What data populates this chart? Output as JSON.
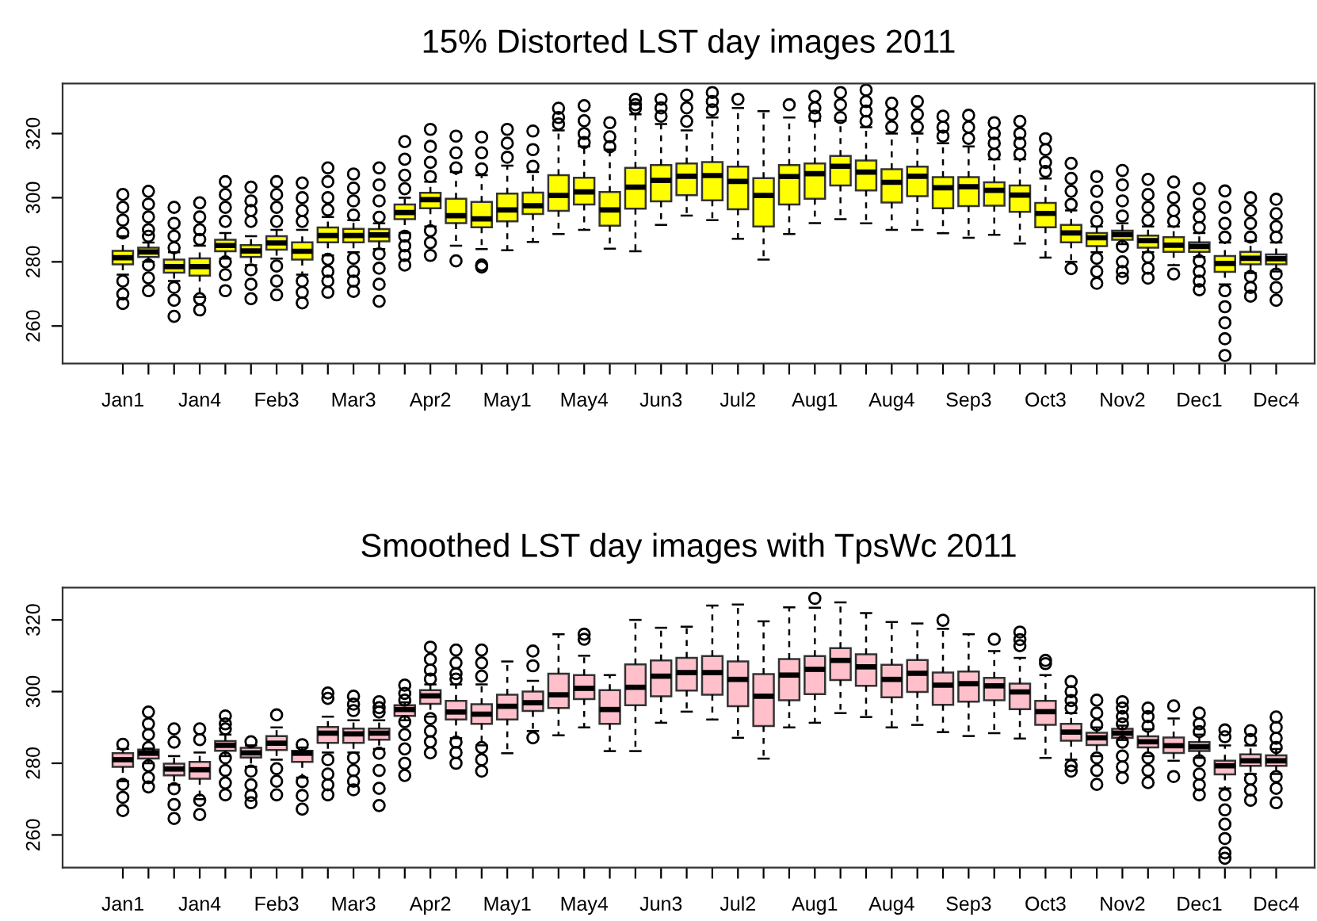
{
  "chart_data": [
    {
      "type": "box",
      "title": "15% Distorted LST day images 2011",
      "color": "#ffff00",
      "ylim": [
        248.3,
        335.6
      ],
      "yticks": [
        260,
        280,
        300,
        320
      ],
      "grid": false,
      "marker": "circle",
      "categories": [
        "Jan1",
        null,
        null,
        "Jan4",
        null,
        null,
        "Feb3",
        null,
        null,
        "Mar3",
        null,
        null,
        "Apr2",
        null,
        null,
        "May1",
        null,
        null,
        "May4",
        null,
        null,
        "Jun3",
        null,
        null,
        "Jul2",
        null,
        null,
        "Aug1",
        null,
        null,
        "Aug4",
        null,
        null,
        "Sep3",
        null,
        null,
        "Oct3",
        null,
        null,
        "Nov2",
        null,
        null,
        "Dec1",
        null,
        null,
        "Dec4"
      ],
      "boxes": [
        {
          "low": 276,
          "q1": 279.2,
          "median": 281.3,
          "q3": 283.4,
          "high": 288,
          "outliers": [
            301,
            297,
            293,
            289,
            274,
            270,
            267
          ]
        },
        {
          "low": 280,
          "q1": 281.5,
          "median": 283.1,
          "q3": 284.4,
          "high": 286,
          "outliers": [
            302,
            298,
            294,
            290,
            288,
            279,
            275,
            271
          ]
        },
        {
          "low": 274,
          "q1": 276.6,
          "median": 278.5,
          "q3": 280.7,
          "high": 283,
          "outliers": [
            297,
            292,
            288,
            284.4,
            272,
            268,
            263
          ]
        },
        {
          "low": 269,
          "q1": 275.7,
          "median": 278.5,
          "q3": 281.1,
          "high": 285,
          "outliers": [
            298.4,
            294,
            290,
            287,
            268.5,
            265
          ]
        },
        {
          "low": 281,
          "q1": 283.3,
          "median": 285.1,
          "q3": 286.9,
          "high": 289,
          "outliers": [
            305,
            301,
            297,
            292.6,
            280,
            276,
            271
          ]
        },
        {
          "low": 279,
          "q1": 281.5,
          "median": 283.4,
          "q3": 285.2,
          "high": 288,
          "outliers": [
            303.3,
            299,
            296,
            292.6,
            277.5,
            273,
            268.5
          ]
        },
        {
          "low": 281,
          "q1": 283.8,
          "median": 285.9,
          "q3": 288,
          "high": 290,
          "outliers": [
            305,
            301,
            297,
            292.6,
            278.7,
            274,
            269.7
          ]
        },
        {
          "low": 276,
          "q1": 280.7,
          "median": 283.3,
          "q3": 286.1,
          "high": 290,
          "outliers": [
            304.6,
            300,
            296,
            292.6,
            274,
            270.5,
            267.2
          ]
        },
        {
          "low": 282,
          "q1": 286.1,
          "median": 288.2,
          "q3": 290.7,
          "high": 294,
          "outliers": [
            309.3,
            305,
            300,
            296.2,
            280.8,
            277,
            274,
            270.5
          ]
        },
        {
          "low": 283,
          "q1": 286.1,
          "median": 288.2,
          "q3": 290.3,
          "high": 293,
          "outliers": [
            307.4,
            303,
            299,
            294.6,
            281.1,
            277,
            274,
            270.8
          ]
        },
        {
          "low": 284,
          "q1": 286.4,
          "median": 288.4,
          "q3": 290.2,
          "high": 292,
          "outliers": [
            309.3,
            304,
            299,
            293.9,
            282.5,
            278,
            273,
            267.7
          ]
        },
        {
          "low": 289,
          "q1": 293.3,
          "median": 295.4,
          "q3": 297.9,
          "high": 300,
          "outliers": [
            317.5,
            312,
            307,
            302.8,
            288,
            285,
            282,
            279
          ]
        },
        {
          "low": 291,
          "q1": 296.7,
          "median": 299.4,
          "q3": 301.5,
          "high": 305,
          "outliers": [
            321.3,
            316,
            311,
            306.6,
            289.7,
            286,
            282
          ]
        },
        {
          "low": 285,
          "q1": 292.1,
          "median": 294.4,
          "q3": 299.7,
          "high": 308,
          "outliers": [
            319.2,
            314,
            309.3,
            280.3
          ]
        },
        {
          "low": 284,
          "q1": 290.8,
          "median": 293.4,
          "q3": 298.7,
          "high": 307,
          "outliers": [
            318.9,
            314,
            309,
            279,
            278.4
          ]
        },
        {
          "low": 283.6,
          "q1": 292.6,
          "median": 296.2,
          "q3": 301.3,
          "high": 310,
          "outliers": [
            321.3,
            317,
            312.6
          ]
        },
        {
          "low": 286.2,
          "q1": 294.9,
          "median": 297.5,
          "q3": 301.6,
          "high": 308,
          "outliers": [
            320.8,
            315,
            309.8
          ]
        },
        {
          "low": 288.7,
          "q1": 295.9,
          "median": 300.7,
          "q3": 307,
          "high": 321,
          "outliers": [
            327.9,
            325,
            323
          ]
        },
        {
          "low": 290,
          "q1": 297.9,
          "median": 301.8,
          "q3": 306.2,
          "high": 316,
          "outliers": [
            328.7,
            324,
            320,
            317.2
          ]
        },
        {
          "low": 284.1,
          "q1": 291.3,
          "median": 296.2,
          "q3": 301.8,
          "high": 315,
          "outliers": [
            323.4,
            319,
            315.9
          ]
        },
        {
          "low": 283.3,
          "q1": 296.6,
          "median": 303.3,
          "q3": 309.3,
          "high": 326,
          "outliers": [
            330.7,
            329,
            327.9
          ]
        },
        {
          "low": 291.5,
          "q1": 298.9,
          "median": 305.4,
          "q3": 310.2,
          "high": 323,
          "outliers": [
            330.7,
            328,
            325.4
          ]
        },
        {
          "low": 294.4,
          "q1": 300.8,
          "median": 306.7,
          "q3": 310.7,
          "high": 321,
          "outliers": [
            332,
            328,
            323.8
          ]
        },
        {
          "low": 293,
          "q1": 299.2,
          "median": 306.9,
          "q3": 311.1,
          "high": 325,
          "outliers": [
            332.8,
            330,
            327.4
          ]
        },
        {
          "low": 287.2,
          "q1": 296.4,
          "median": 305.1,
          "q3": 309.7,
          "high": 328,
          "outliers": [
            330.7
          ]
        },
        {
          "low": 280.7,
          "q1": 291,
          "median": 300.7,
          "q3": 306.1,
          "high": 327
        },
        {
          "low": 288.7,
          "q1": 297.9,
          "median": 306.6,
          "q3": 310.2,
          "high": 325,
          "outliers": [
            329
          ]
        },
        {
          "low": 292.1,
          "q1": 299.7,
          "median": 307.5,
          "q3": 310.7,
          "high": 324,
          "outliers": [
            331.6,
            328,
            325.4
          ]
        },
        {
          "low": 293.3,
          "q1": 303.8,
          "median": 309.8,
          "q3": 313,
          "high": 324,
          "outliers": [
            332.8,
            329,
            325
          ]
        },
        {
          "low": 292,
          "q1": 302.3,
          "median": 308,
          "q3": 311.6,
          "high": 322,
          "outliers": [
            333.6,
            330,
            327,
            323.8
          ]
        },
        {
          "low": 290,
          "q1": 298.5,
          "median": 304.8,
          "q3": 308.9,
          "high": 320,
          "outliers": [
            329.5,
            326,
            322.1
          ]
        },
        {
          "low": 290,
          "q1": 300.5,
          "median": 306.7,
          "q3": 309.7,
          "high": 320,
          "outliers": [
            330,
            326,
            322.1
          ]
        },
        {
          "low": 288.9,
          "q1": 296.7,
          "median": 303.1,
          "q3": 306.4,
          "high": 317,
          "outliers": [
            325.4,
            322,
            319.2
          ]
        },
        {
          "low": 287.5,
          "q1": 297.4,
          "median": 303.4,
          "q3": 306.4,
          "high": 316,
          "outliers": [
            325.7,
            322,
            318.5
          ]
        },
        {
          "low": 288.4,
          "q1": 297.5,
          "median": 302.3,
          "q3": 304.8,
          "high": 312,
          "outliers": [
            323.4,
            320,
            317,
            313.6
          ]
        },
        {
          "low": 285.7,
          "q1": 295.6,
          "median": 300.8,
          "q3": 303.8,
          "high": 312,
          "outliers": [
            323.8,
            320,
            317,
            313.6
          ]
        },
        {
          "low": 281.3,
          "q1": 290.8,
          "median": 295.1,
          "q3": 298.4,
          "high": 306,
          "outliers": [
            318.4,
            315,
            311,
            308.2
          ]
        },
        {
          "low": 280,
          "q1": 286.1,
          "median": 289,
          "q3": 291.5,
          "high": 296,
          "outliers": [
            310.7,
            306,
            302,
            297.9,
            277.9
          ]
        },
        {
          "low": 283,
          "q1": 284.9,
          "median": 287.5,
          "q3": 289,
          "high": 291,
          "outliers": [
            306.6,
            302,
            297,
            292.6,
            281.1,
            277,
            273.3
          ]
        },
        {
          "low": 285.5,
          "q1": 286.9,
          "median": 288.5,
          "q3": 289.7,
          "high": 292,
          "outliers": [
            308.5,
            304,
            299,
            294.3,
            284.8,
            280,
            277,
            274.9
          ]
        },
        {
          "low": 283,
          "q1": 284.4,
          "median": 286.6,
          "q3": 288.2,
          "high": 291,
          "outliers": [
            305.7,
            301,
            297,
            292.9,
            281.5,
            278,
            274.9
          ]
        },
        {
          "low": 279,
          "q1": 283.1,
          "median": 285.2,
          "q3": 287.7,
          "high": 291,
          "outliers": [
            304.9,
            300,
            296,
            292.6,
            276.2
          ]
        },
        {
          "low": 281.5,
          "q1": 283.1,
          "median": 284.8,
          "q3": 286.1,
          "high": 289,
          "outliers": [
            302.8,
            298,
            294,
            290.7,
            280.3,
            277,
            274,
            271.3
          ]
        },
        {
          "low": 273,
          "q1": 276.9,
          "median": 279.5,
          "q3": 281.8,
          "high": 286,
          "outliers": [
            302.1,
            297,
            292,
            287.7,
            271,
            266,
            261,
            256,
            250.8
          ]
        },
        {
          "low": 276.5,
          "q1": 279.2,
          "median": 281.1,
          "q3": 283.1,
          "high": 286.5,
          "outliers": [
            300,
            296,
            292,
            287.7,
            275.4,
            272,
            269.3
          ]
        },
        {
          "low": 277,
          "q1": 279.2,
          "median": 281,
          "q3": 282.3,
          "high": 286,
          "outliers": [
            299.5,
            295,
            291,
            287.7,
            276.2,
            272,
            268
          ]
        }
      ]
    },
    {
      "type": "box",
      "title": "Smoothed LST day images with TpsWc 2011",
      "color": "#ffc0cb",
      "ylim": [
        250.9,
        329.0
      ],
      "yticks": [
        260,
        280,
        300,
        320
      ],
      "grid": false,
      "marker": "circle",
      "categories": [
        "Jan1",
        null,
        null,
        "Jan4",
        null,
        null,
        "Feb3",
        null,
        null,
        "Mar3",
        null,
        null,
        "Apr2",
        null,
        null,
        "May1",
        null,
        null,
        "May4",
        null,
        null,
        "Jun3",
        null,
        null,
        "Jul2",
        null,
        null,
        "Aug1",
        null,
        null,
        "Aug4",
        null,
        null,
        "Sep3",
        null,
        null,
        "Oct3",
        null,
        null,
        "Nov2",
        null,
        null,
        "Dec1",
        null,
        null,
        "Dec4"
      ],
      "boxes": [
        {
          "low": 275,
          "q1": 279,
          "median": 281,
          "q3": 282.8,
          "high": 284,
          "outliers": [
            285.3,
            274.1,
            270.5,
            266.8
          ]
        },
        {
          "low": 280,
          "q1": 281.3,
          "median": 282.8,
          "q3": 283.8,
          "high": 284.1,
          "outliers": [
            294.3,
            291,
            288,
            284.4,
            279.3,
            276,
            273.4
          ]
        },
        {
          "low": 274,
          "q1": 276.6,
          "median": 278.4,
          "q3": 279.9,
          "high": 282,
          "outliers": [
            289.6,
            285.9,
            272.9,
            268.5,
            264.6
          ]
        },
        {
          "low": 270,
          "q1": 275.7,
          "median": 278.2,
          "q3": 280.4,
          "high": 283,
          "outliers": [
            289.6,
            286.6,
            269.7,
            265.7
          ]
        },
        {
          "low": 282,
          "q1": 283.5,
          "median": 285,
          "q3": 286.2,
          "high": 288,
          "outliers": [
            293.2,
            291,
            289.6,
            281.5,
            278,
            274.5,
            271.2
          ]
        },
        {
          "low": 279,
          "q1": 281.6,
          "median": 282.9,
          "q3": 284.3,
          "high": 285,
          "outliers": [
            286,
            277.8,
            274,
            271,
            269
          ]
        },
        {
          "low": 281,
          "q1": 283.7,
          "median": 285.6,
          "q3": 287.6,
          "high": 290,
          "outliers": [
            293.5,
            278.5,
            275,
            271.2
          ]
        },
        {
          "low": 276,
          "q1": 280.4,
          "median": 282.8,
          "q3": 283.5,
          "high": 284.4,
          "outliers": [
            285.2,
            274.9,
            271,
            267.2
          ]
        },
        {
          "low": 283,
          "q1": 285.7,
          "median": 288.4,
          "q3": 290.1,
          "high": 293,
          "outliers": [
            299.6,
            298.1,
            281,
            277,
            274,
            271.2
          ]
        },
        {
          "low": 283,
          "q1": 285.7,
          "median": 288.2,
          "q3": 289.7,
          "high": 292,
          "outliers": [
            298.7,
            296.5,
            294.7,
            281.5,
            278,
            275,
            272.6
          ]
        },
        {
          "low": 284,
          "q1": 286.6,
          "median": 288.4,
          "q3": 289.7,
          "high": 292,
          "outliers": [
            297.2,
            295.5,
            294.3,
            282.8,
            278,
            273,
            268.2
          ]
        },
        {
          "low": 292,
          "q1": 293.2,
          "median": 295,
          "q3": 296.2,
          "high": 297,
          "outliers": [
            301.8,
            299.5,
            297.6,
            291.6,
            288,
            284,
            280,
            276.6
          ]
        },
        {
          "low": 293,
          "q1": 296.6,
          "median": 298.8,
          "q3": 300.4,
          "high": 302,
          "outliers": [
            312.4,
            309,
            306,
            303.5,
            292.5,
            289,
            286,
            282.9
          ]
        },
        {
          "low": 287,
          "q1": 292.2,
          "median": 294.3,
          "q3": 297.4,
          "high": 302,
          "outliers": [
            311.6,
            308,
            305,
            303.5,
            285.9,
            283,
            280
          ]
        },
        {
          "low": 285,
          "q1": 291,
          "median": 293.7,
          "q3": 296.5,
          "high": 302,
          "outliers": [
            311.6,
            308,
            304.3,
            284.4,
            281,
            277.8
          ]
        },
        {
          "low": 282.8,
          "q1": 292.2,
          "median": 295.9,
          "q3": 299.1,
          "high": 308.4
        },
        {
          "low": 289,
          "q1": 294.6,
          "median": 296.9,
          "q3": 300,
          "high": 303,
          "outliers": [
            311.3,
            307.2,
            287.1
          ]
        },
        {
          "low": 287.8,
          "q1": 295.4,
          "median": 299.1,
          "q3": 305,
          "high": 316
        },
        {
          "low": 290,
          "q1": 297.9,
          "median": 300.9,
          "q3": 304.6,
          "high": 310,
          "outliers": [
            316,
            314.6
          ]
        },
        {
          "low": 283.4,
          "q1": 291,
          "median": 295,
          "q3": 300.4,
          "high": 304.6
        },
        {
          "low": 283.4,
          "q1": 296.2,
          "median": 301.2,
          "q3": 307.6,
          "high": 320
        },
        {
          "low": 291.3,
          "q1": 298.7,
          "median": 304.3,
          "q3": 308.7,
          "high": 317.8
        },
        {
          "low": 294.4,
          "q1": 300.3,
          "median": 305.3,
          "q3": 309.4,
          "high": 318.1
        },
        {
          "low": 292.2,
          "q1": 299.1,
          "median": 305.3,
          "q3": 309.9,
          "high": 324
        },
        {
          "low": 287.1,
          "q1": 295.9,
          "median": 303.4,
          "q3": 308.4,
          "high": 324.3
        },
        {
          "low": 281.3,
          "q1": 290.4,
          "median": 298.7,
          "q3": 304.9,
          "high": 319.6
        },
        {
          "low": 290,
          "q1": 297.6,
          "median": 304.6,
          "q3": 309.1,
          "high": 323.5
        },
        {
          "low": 291.3,
          "q1": 299.3,
          "median": 306.2,
          "q3": 309.9,
          "high": 323.4,
          "outliers": [
            326
          ]
        },
        {
          "low": 294,
          "q1": 303.2,
          "median": 308.7,
          "q3": 312.1,
          "high": 324.9
        },
        {
          "low": 292.9,
          "q1": 301.6,
          "median": 306.9,
          "q3": 310.4,
          "high": 321.9
        },
        {
          "low": 290,
          "q1": 298.4,
          "median": 303.4,
          "q3": 307.5,
          "high": 319.4
        },
        {
          "low": 290.7,
          "q1": 299.9,
          "median": 305.1,
          "q3": 308.8,
          "high": 319
        },
        {
          "low": 288.7,
          "q1": 296.3,
          "median": 301.8,
          "q3": 305.3,
          "high": 317.5,
          "outliers": [
            319.9
          ]
        },
        {
          "low": 287.6,
          "q1": 297.2,
          "median": 302.2,
          "q3": 305.6,
          "high": 316
        },
        {
          "low": 288.4,
          "q1": 297.6,
          "median": 301.6,
          "q3": 303.8,
          "high": 311.3,
          "outliers": [
            314.6
          ]
        },
        {
          "low": 286.9,
          "q1": 295.1,
          "median": 299.9,
          "q3": 302.2,
          "high": 309.4,
          "outliers": [
            316.6,
            314.5,
            312.8
          ]
        },
        {
          "low": 281.5,
          "q1": 290.7,
          "median": 294.4,
          "q3": 297.4,
          "high": 304.6,
          "outliers": [
            308.7,
            307.8
          ]
        },
        {
          "low": 281,
          "q1": 286.3,
          "median": 288.7,
          "q3": 291,
          "high": 294,
          "outliers": [
            302.8,
            300,
            297.5,
            295.4,
            279.3,
            277.8
          ]
        },
        {
          "low": 282,
          "q1": 285.1,
          "median": 287.1,
          "q3": 288.5,
          "high": 290,
          "outliers": [
            297.6,
            294,
            290.7,
            281.5,
            278,
            274.1
          ]
        },
        {
          "low": 286.5,
          "q1": 287.1,
          "median": 288.4,
          "q3": 289.6,
          "high": 290.5,
          "outliers": [
            297.2,
            295.4,
            293,
            291,
            285.9,
            282,
            279,
            276
          ]
        },
        {
          "low": 282,
          "q1": 284.4,
          "median": 286,
          "q3": 287.5,
          "high": 289.5,
          "outliers": [
            295.4,
            293,
            290.3,
            281.5,
            278,
            274.6
          ]
        },
        {
          "low": 280.7,
          "q1": 282.9,
          "median": 284.9,
          "q3": 287.2,
          "high": 292.5,
          "outliers": [
            296,
            276.3
          ]
        },
        {
          "low": 281.5,
          "q1": 283.4,
          "median": 284.6,
          "q3": 285.9,
          "high": 288,
          "outliers": [
            294,
            291,
            288.8,
            280.7,
            277,
            274,
            271.2
          ]
        },
        {
          "low": 273,
          "q1": 276.9,
          "median": 279.3,
          "q3": 280.7,
          "high": 285,
          "outliers": [
            289.3,
            287.4,
            271.2,
            267,
            263,
            259,
            255,
            253.5
          ]
        },
        {
          "low": 277,
          "q1": 279.3,
          "median": 280.7,
          "q3": 282.5,
          "high": 285,
          "outliers": [
            289.1,
            286.6,
            275.6,
            272.5,
            269.7
          ]
        },
        {
          "low": 277,
          "q1": 279.3,
          "median": 280.7,
          "q3": 282.2,
          "high": 284,
          "outliers": [
            292.9,
            290,
            287,
            284.4,
            276.3,
            273,
            269
          ]
        }
      ]
    }
  ]
}
